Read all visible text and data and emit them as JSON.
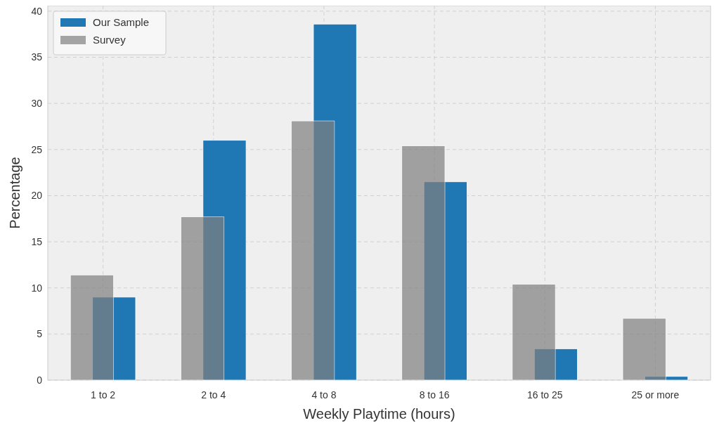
{
  "chart_data": {
    "type": "bar",
    "xlabel": "Weekly Playtime (hours)",
    "ylabel": "Percentage",
    "categories": [
      "1 to 2",
      "2 to 4",
      "4 to 8",
      "8 to 16",
      "16 to 25",
      "25 or more"
    ],
    "series": [
      {
        "name": "Our Sample",
        "color": "#1f77b4",
        "values": [
          9.0,
          26.0,
          38.6,
          21.5,
          3.4,
          0.4
        ]
      },
      {
        "name": "Survey",
        "color": "#808080",
        "values": [
          11.4,
          17.7,
          28.1,
          25.4,
          10.4,
          6.7
        ]
      }
    ],
    "ylim": [
      0,
      40.6
    ],
    "yticks": [
      0,
      5,
      10,
      15,
      20,
      25,
      30,
      35,
      40
    ],
    "grid": true,
    "legend": "top left"
  }
}
